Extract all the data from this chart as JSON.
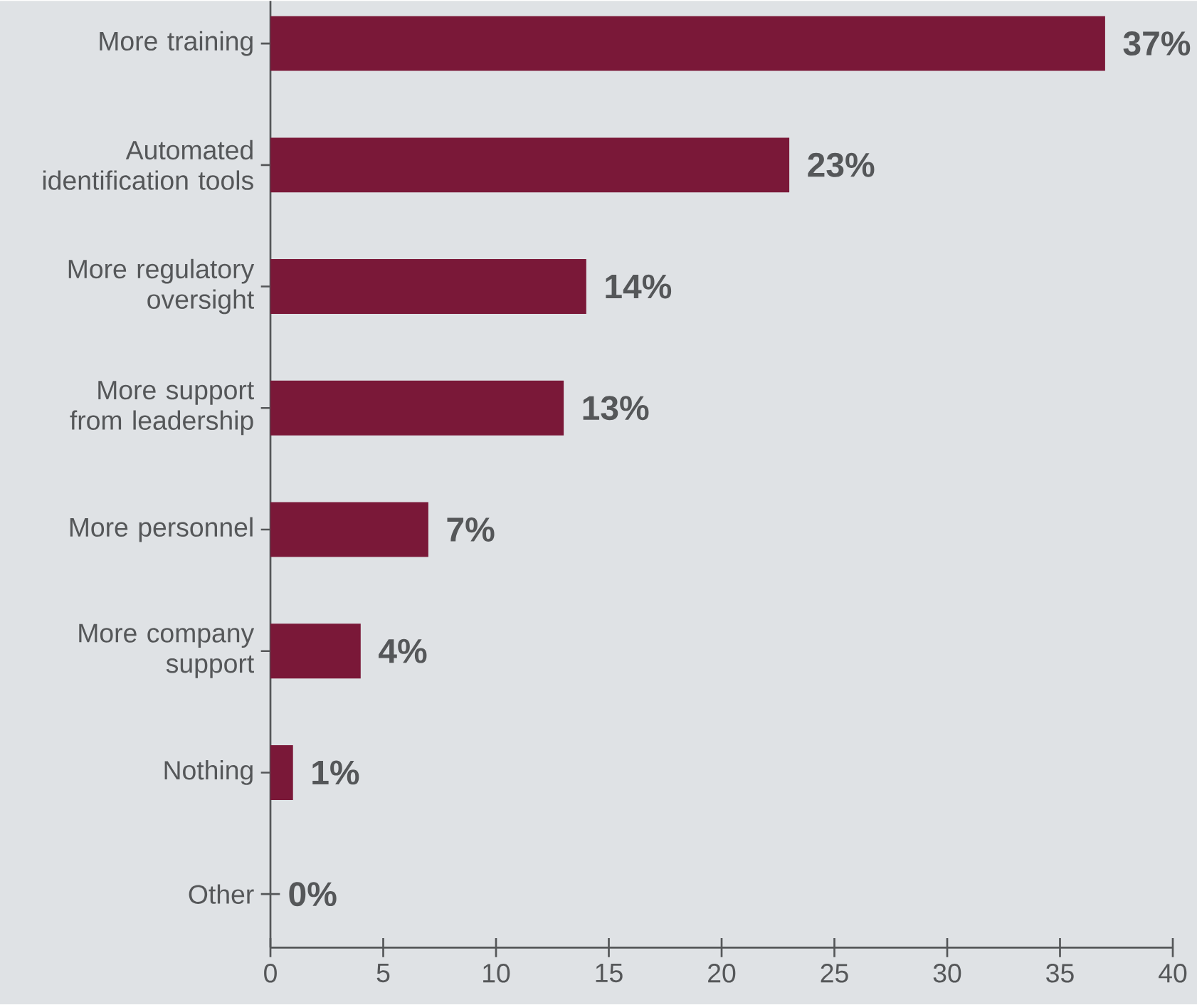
{
  "chart_data": {
    "type": "bar",
    "orientation": "horizontal",
    "categories": [
      "More training",
      "Automated identification tools",
      "More regulatory oversight",
      "More support from leadership",
      "More personnel",
      "More company support",
      "Nothing",
      "Other"
    ],
    "values": [
      37,
      23,
      14,
      13,
      7,
      4,
      1,
      0
    ],
    "value_labels": [
      "37%",
      "23%",
      "14%",
      "13%",
      "7%",
      "4%",
      "1%",
      "0%"
    ],
    "color": "#7a1838",
    "xlim": [
      0,
      40
    ],
    "xticks": [
      0,
      5,
      10,
      15,
      20,
      25,
      30,
      35,
      40
    ],
    "grid": false
  }
}
